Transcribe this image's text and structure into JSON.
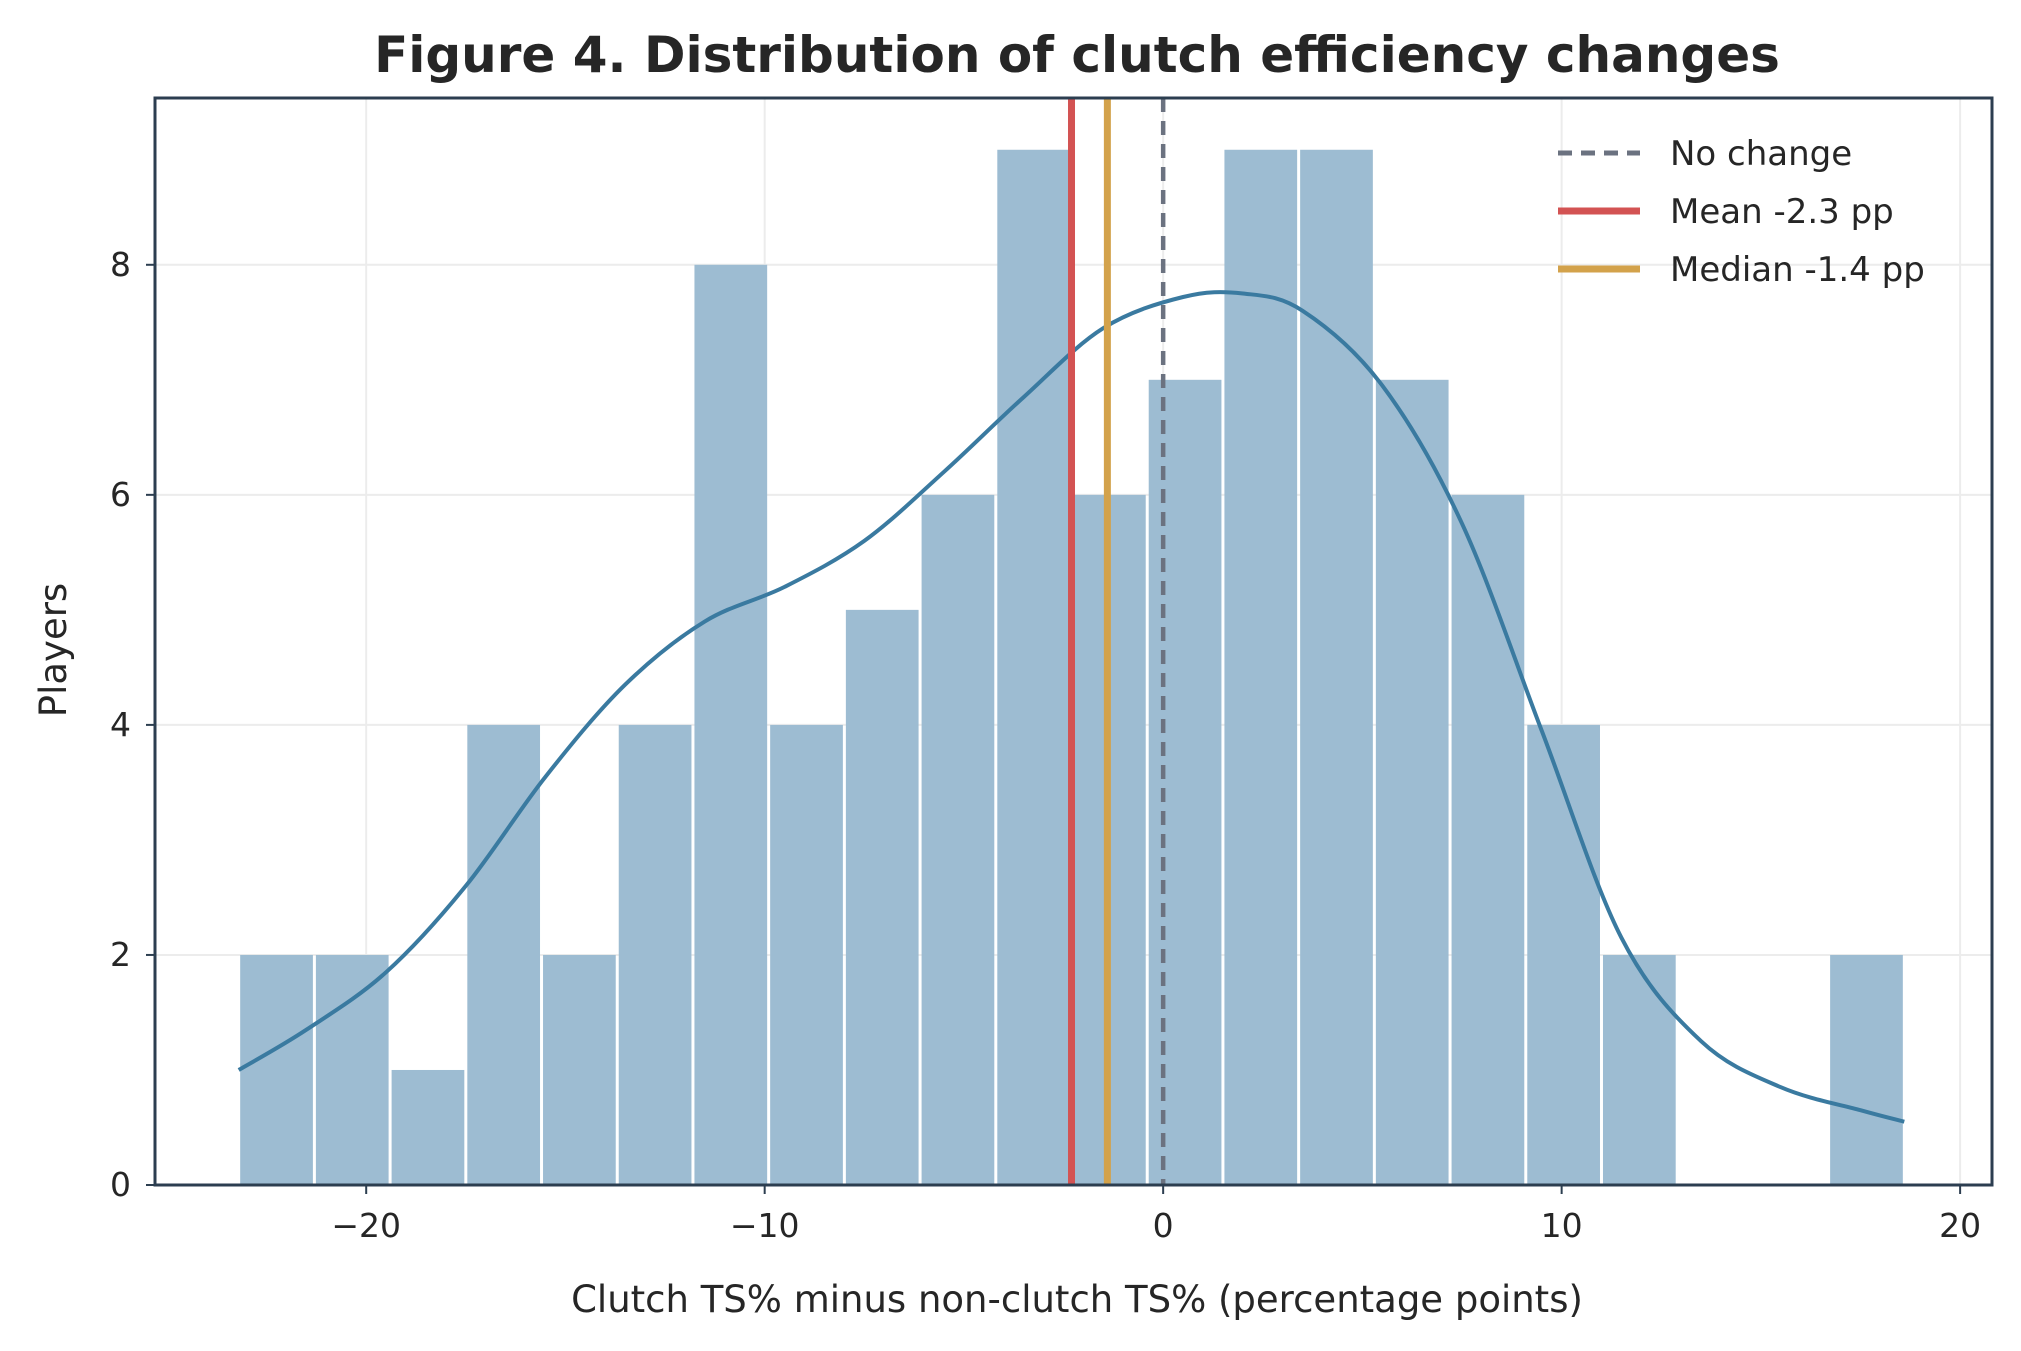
{
  "chart_data": {
    "type": "bar",
    "title": "Figure 4. Distribution of clutch efficiency changes",
    "xlabel": "Clutch TS% minus non-clutch TS% (percentage points)",
    "ylabel": "Players",
    "xlim": [
      -25.3,
      20.8
    ],
    "ylim": [
      0,
      9.45
    ],
    "xticks": [
      {
        "value": -20,
        "label": "−20"
      },
      {
        "value": -10,
        "label": "−10"
      },
      {
        "value": 0,
        "label": "0"
      },
      {
        "value": 10,
        "label": "10"
      },
      {
        "value": 20,
        "label": "20"
      }
    ],
    "yticks": [
      {
        "value": 0,
        "label": "0"
      },
      {
        "value": 2,
        "label": "2"
      },
      {
        "value": 4,
        "label": "4"
      },
      {
        "value": 6,
        "label": "6"
      },
      {
        "value": 8,
        "label": "8"
      }
    ],
    "grid": true,
    "legend_position": "top-right",
    "bin_edges": [
      -23.2,
      -21.3,
      -19.4,
      -17.5,
      -15.6,
      -13.7,
      -11.8,
      -9.9,
      -8.0,
      -6.1,
      -4.2,
      -2.3,
      -0.4,
      1.5,
      3.4,
      5.3,
      7.2,
      9.1,
      11.0,
      12.9,
      14.8,
      16.7,
      18.6
    ],
    "counts": [
      2,
      2,
      1,
      4,
      2,
      4,
      8,
      4,
      5,
      6,
      9,
      6,
      7,
      9,
      9,
      7,
      6,
      4,
      2,
      0,
      0,
      2
    ],
    "kde": {
      "x": [
        -23.2,
        -21.5,
        -19.5,
        -17.5,
        -15.5,
        -13.5,
        -11.5,
        -9.5,
        -7.5,
        -5.5,
        -3.5,
        -1.5,
        0.5,
        2.0,
        3.5,
        5.5,
        7.5,
        9.5,
        11.5,
        13.5,
        15.5,
        17.5,
        18.6
      ],
      "y": [
        1.0,
        1.35,
        1.85,
        2.6,
        3.55,
        4.35,
        4.9,
        5.2,
        5.6,
        6.2,
        6.85,
        7.45,
        7.72,
        7.75,
        7.6,
        6.95,
        5.75,
        3.95,
        2.15,
        1.25,
        0.85,
        0.65,
        0.55
      ]
    },
    "reference_lines": [
      {
        "name": "No change",
        "x": 0,
        "style": "dashed",
        "color": "#6b7280"
      },
      {
        "name": "Mean -2.3 pp",
        "x": -2.3,
        "style": "solid",
        "color": "#d35353"
      },
      {
        "name": "Median -1.4 pp",
        "x": -1.4,
        "style": "solid",
        "color": "#d3a24b"
      }
    ],
    "colors": {
      "bars": "#9dbcd2",
      "kde": "#3a7aa0",
      "frame": "#2c3e50",
      "grid": "#ececec"
    }
  }
}
